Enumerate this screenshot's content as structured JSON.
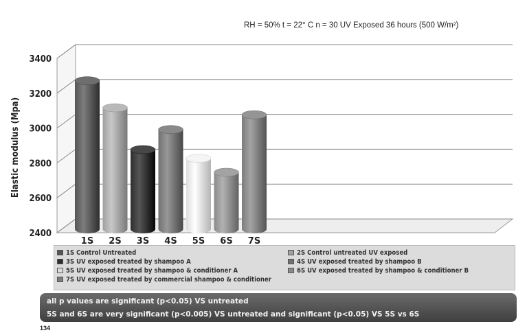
{
  "chart_data": {
    "type": "bar",
    "title": "",
    "annotation": "RH = 50%    t = 22° C   n = 30    UV Exposed 36 hours (500 W/m²)",
    "ylabel": "Elastic modulus (Mpa)",
    "xlabel": "",
    "ylim": [
      2400,
      3400
    ],
    "yticks": [
      "2400",
      "2600",
      "2800",
      "3000",
      "3200",
      "3400"
    ],
    "grid": true,
    "categories": [
      "1S",
      "2S",
      "3S",
      "4S",
      "5S",
      "6S",
      "7S"
    ],
    "values": [
      3240,
      3085,
      2845,
      2960,
      2795,
      2715,
      3045
    ],
    "colors": [
      "#555555",
      "#a0a0a0",
      "#2e2e2e",
      "#707070",
      "#dcdcdc",
      "#8a8a8a",
      "#7c7c7c"
    ],
    "legend_position": "bottom",
    "legend": [
      "1S Control Untreated",
      "2S Control untreated UV exposed",
      "3S UV exposed treated by shampoo A",
      "4S UV exposed treated by shampoo B",
      "5S UV exposed treated by shampoo & conditioner A",
      "6S UV exposed treated by  shampoo & conditioner B",
      "7S UV exposed treated by commercial shampoo & conditioner"
    ]
  },
  "notes": {
    "line1": "all p values are significant (p<0.05) VS untreated",
    "line2": "5S and 6S are very significant (p<0.005) VS untreated and significant (p<0.05) VS  5S vs 6S"
  },
  "page_number": "134"
}
